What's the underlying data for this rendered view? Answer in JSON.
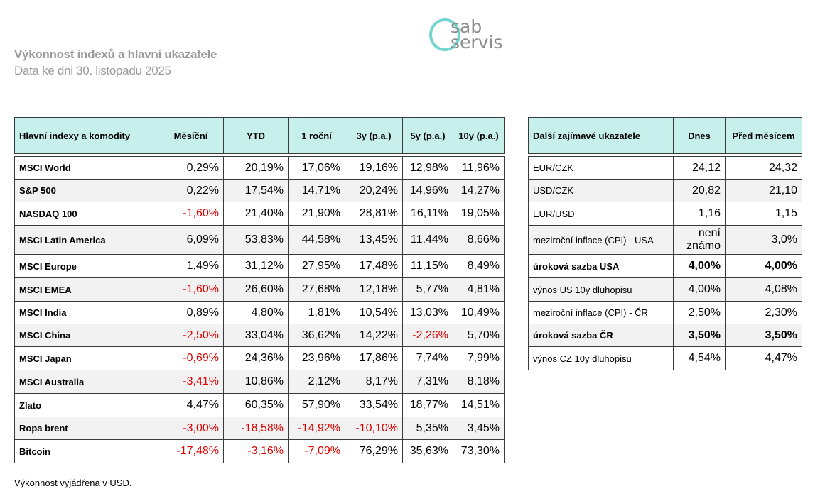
{
  "header": {
    "title": "Výkonnost indexů a hlavní ukazatele",
    "subtitle": "Data ke dni 30. listopadu 2025",
    "logo": [
      "sab",
      "servis"
    ]
  },
  "indices_table": {
    "columns": [
      "Hlavní indexy a komodity",
      "Měsíční",
      "YTD",
      "1 roční",
      "3y (p.a.)",
      "5y (p.a.)",
      "10y (p.a.)"
    ],
    "rows": [
      [
        "MSCI World",
        "0,29%",
        "20,19%",
        "17,06%",
        "19,16%",
        "12,98%",
        "11,96%"
      ],
      [
        "S&P 500",
        "0,22%",
        "17,54%",
        "14,71%",
        "20,24%",
        "14,96%",
        "14,27%"
      ],
      [
        "NASDAQ 100",
        "-1,60%",
        "21,40%",
        "21,90%",
        "28,81%",
        "16,11%",
        "19,05%"
      ],
      [
        "MSCI Latin America",
        "6,09%",
        "53,83%",
        "44,58%",
        "13,45%",
        "11,44%",
        "8,66%"
      ],
      [
        "MSCI Europe",
        "1,49%",
        "31,12%",
        "27,95%",
        "17,48%",
        "11,15%",
        "8,49%"
      ],
      [
        "MSCI EMEA",
        "-1,60%",
        "26,60%",
        "27,68%",
        "12,18%",
        "5,77%",
        "4,81%"
      ],
      [
        "MSCI India",
        "0,89%",
        "4,80%",
        "1,81%",
        "10,54%",
        "13,03%",
        "10,49%"
      ],
      [
        "MSCI China",
        "-2,50%",
        "33,04%",
        "36,62%",
        "14,22%",
        "-2,26%",
        "5,70%"
      ],
      [
        "MSCI Japan",
        "-0,69%",
        "24,36%",
        "23,96%",
        "17,86%",
        "7,74%",
        "7,99%"
      ],
      [
        "MSCI Australia",
        "-3,41%",
        "10,86%",
        "2,12%",
        "8,17%",
        "7,31%",
        "8,18%"
      ],
      [
        "Zlato",
        "4,47%",
        "60,35%",
        "57,90%",
        "33,54%",
        "18,77%",
        "14,51%"
      ],
      [
        "Ropa brent",
        "-3,00%",
        "-18,58%",
        "-14,92%",
        "-10,10%",
        "5,35%",
        "3,45%"
      ],
      [
        "Bitcoin",
        "-17,48%",
        "-3,16%",
        "-7,09%",
        "76,29%",
        "35,63%",
        "73,30%"
      ]
    ]
  },
  "indicators_table": {
    "columns": [
      "Další zajímavé ukazatele",
      "Dnes",
      "Před měsícem"
    ],
    "rows": [
      [
        "EUR/CZK",
        "24,12",
        "24,32"
      ],
      [
        "USD/CZK",
        "20,82",
        "21,10"
      ],
      [
        "EUR/USD",
        "1,16",
        "1,15"
      ],
      [
        "meziroční inflace (CPI) - USA",
        "není známo",
        "3,0%"
      ],
      [
        "úroková sazba USA",
        "4,00%",
        "4,00%"
      ],
      [
        "výnos US 10y dluhopisu",
        "4,00%",
        "4,08%"
      ],
      [
        "meziroční inflace (CPI) - ČR",
        "2,50%",
        "2,30%"
      ],
      [
        "úroková sazba ČR",
        "3,50%",
        "3,50%"
      ],
      [
        "výnos CZ 10y dluhopisu",
        "4,54%",
        "4,47%"
      ]
    ],
    "bold_rows": [
      4,
      7
    ]
  },
  "footer": "Výkonnost vyjádřena v USD."
}
